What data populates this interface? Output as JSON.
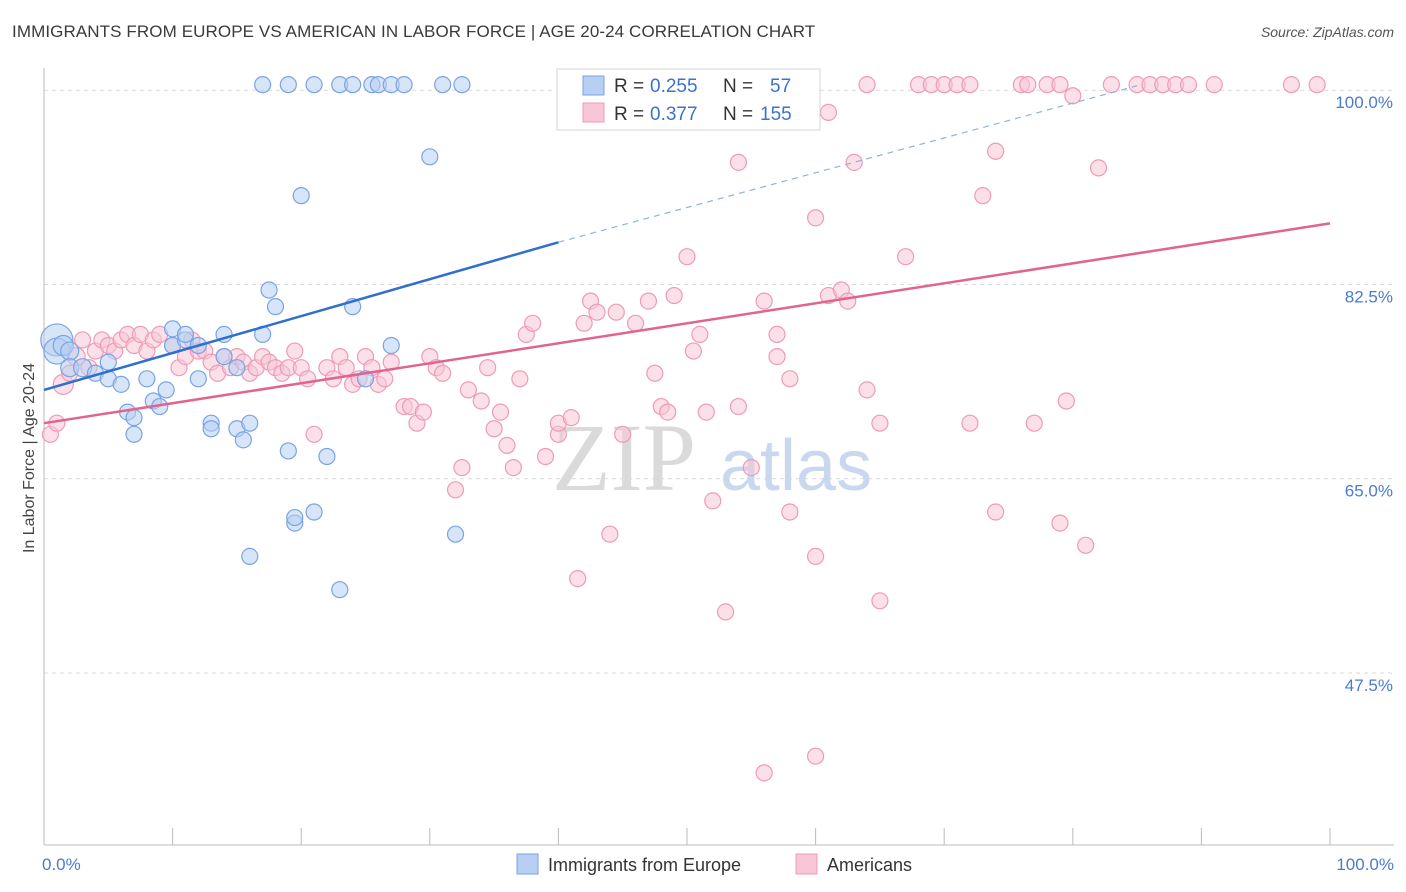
{
  "header": {
    "title": "IMMIGRANTS FROM EUROPE VS AMERICAN IN LABOR FORCE | AGE 20-24 CORRELATION CHART",
    "source": "Source: ZipAtlas.com"
  },
  "watermark": {
    "zip": "ZIP",
    "atlas": "atlas"
  },
  "legend": {
    "r_label": "R =",
    "n_label": "N =",
    "entries": [
      {
        "r": "0.255",
        "n": "57"
      },
      {
        "r": "0.377",
        "n": "155"
      }
    ]
  },
  "chart_data": {
    "type": "scatter",
    "ylabel": "In Labor Force | Age 20-24",
    "xlim": [
      0,
      100
    ],
    "ylim": [
      32,
      102
    ],
    "x_tick_labels": [
      "0.0%",
      "100.0%"
    ],
    "y_ticks": [
      {
        "value": 100,
        "label": "100.0%"
      },
      {
        "value": 82.5,
        "label": "82.5%"
      },
      {
        "value": 65,
        "label": "65.0%"
      },
      {
        "value": 47.5,
        "label": "47.5%"
      }
    ],
    "grid": "horizontal dashed",
    "legend_placement": "top-center",
    "series": [
      {
        "name": "Immigrants from Europe",
        "color": "#7aa3e5",
        "fill": "#b7cff2",
        "line_color": "#2f6fcd",
        "trend": {
          "x0": 0,
          "y0": 73,
          "x1": 40,
          "y1": 86.3,
          "dash_to_x": 85,
          "dash_to_y": 100.4
        },
        "points": [
          [
            1,
            77.5,
            16
          ],
          [
            1,
            76.5,
            13
          ],
          [
            1.5,
            77,
            10
          ],
          [
            2,
            76.5,
            9
          ],
          [
            2,
            75,
            9
          ],
          [
            3,
            75,
            9
          ],
          [
            4,
            74.5,
            8
          ],
          [
            5,
            74,
            8
          ],
          [
            5,
            75.5,
            8
          ],
          [
            6,
            73.5,
            8
          ],
          [
            6.5,
            71,
            8
          ],
          [
            7,
            69,
            8
          ],
          [
            7,
            70.5,
            8
          ],
          [
            8,
            74,
            8
          ],
          [
            8.5,
            72,
            8
          ],
          [
            9,
            71.5,
            8
          ],
          [
            9.5,
            73,
            8
          ],
          [
            10,
            78.5,
            8
          ],
          [
            10,
            77,
            8
          ],
          [
            11,
            77.5,
            8
          ],
          [
            11,
            78,
            8
          ],
          [
            12,
            77,
            8
          ],
          [
            12,
            74,
            8
          ],
          [
            13,
            70,
            8
          ],
          [
            13,
            69.5,
            8
          ],
          [
            14,
            76,
            8
          ],
          [
            14,
            78,
            8
          ],
          [
            15,
            75,
            8
          ],
          [
            15,
            69.5,
            8
          ],
          [
            15.5,
            68.5,
            8
          ],
          [
            16,
            70,
            8
          ],
          [
            16,
            58,
            8
          ],
          [
            17,
            78,
            8
          ],
          [
            17.5,
            82,
            8
          ],
          [
            18,
            80.5,
            8
          ],
          [
            19,
            67.5,
            8
          ],
          [
            19.5,
            61,
            8
          ],
          [
            19.5,
            61.5,
            8
          ],
          [
            21,
            62,
            8
          ],
          [
            22,
            67,
            8
          ],
          [
            23,
            55,
            8
          ],
          [
            24,
            80.5,
            8
          ],
          [
            25,
            74,
            8
          ],
          [
            27,
            77,
            8
          ],
          [
            30,
            94,
            8
          ],
          [
            32,
            60,
            8
          ],
          [
            17,
            100.5,
            8
          ],
          [
            19,
            100.5,
            8
          ],
          [
            21,
            100.5,
            8
          ],
          [
            23,
            100.5,
            8
          ],
          [
            24,
            100.5,
            8
          ],
          [
            25.5,
            100.5,
            8
          ],
          [
            26,
            100.5,
            8
          ],
          [
            27,
            100.5,
            8
          ],
          [
            28,
            100.5,
            8
          ],
          [
            31,
            100.5,
            8
          ],
          [
            32.5,
            100.5,
            8
          ],
          [
            20,
            90.5,
            8
          ]
        ]
      },
      {
        "name": "Americans",
        "color": "#ef9ab8",
        "fill": "#f8c6d6",
        "line_color": "#e0648f",
        "trend": {
          "x0": 0,
          "y0": 70,
          "x1": 100,
          "y1": 88
        },
        "points": [
          [
            0.5,
            69,
            8
          ],
          [
            1,
            70,
            8
          ],
          [
            1.5,
            73.5,
            10
          ],
          [
            2,
            74.5,
            8
          ],
          [
            2.5,
            76,
            9
          ],
          [
            3,
            77.5,
            8
          ],
          [
            3.5,
            75,
            8
          ],
          [
            4,
            76.5,
            8
          ],
          [
            4.5,
            77.5,
            8
          ],
          [
            5,
            77,
            8
          ],
          [
            5.5,
            76.5,
            8
          ],
          [
            6,
            77.5,
            8
          ],
          [
            6.5,
            78,
            8
          ],
          [
            7,
            77,
            8
          ],
          [
            7.5,
            78,
            8
          ],
          [
            8,
            76.5,
            8
          ],
          [
            8.5,
            77.5,
            8
          ],
          [
            9,
            78,
            8
          ],
          [
            10,
            77,
            8
          ],
          [
            10.5,
            75,
            8
          ],
          [
            11,
            76,
            8
          ],
          [
            11.5,
            77.5,
            8
          ],
          [
            12,
            76.5,
            8
          ],
          [
            12.5,
            76.5,
            8
          ],
          [
            13,
            75.5,
            8
          ],
          [
            13.5,
            74.5,
            8
          ],
          [
            14,
            76,
            8
          ],
          [
            14.5,
            75,
            8
          ],
          [
            15,
            76,
            8
          ],
          [
            15.5,
            75.5,
            8
          ],
          [
            16,
            74.5,
            8
          ],
          [
            16.5,
            75,
            8
          ],
          [
            17,
            76,
            8
          ],
          [
            17.5,
            75.5,
            8
          ],
          [
            18,
            75,
            8
          ],
          [
            18.5,
            74.5,
            8
          ],
          [
            19,
            75,
            8
          ],
          [
            19.5,
            76.5,
            8
          ],
          [
            20,
            75,
            8
          ],
          [
            20.5,
            74,
            8
          ],
          [
            21,
            69,
            8
          ],
          [
            22,
            75,
            8
          ],
          [
            22.5,
            74,
            8
          ],
          [
            23,
            76,
            8
          ],
          [
            23.5,
            75,
            8
          ],
          [
            24,
            73.5,
            8
          ],
          [
            24.5,
            74,
            8
          ],
          [
            25,
            76,
            8
          ],
          [
            25.5,
            75,
            8
          ],
          [
            26,
            73.5,
            8
          ],
          [
            26.5,
            74,
            8
          ],
          [
            27,
            75.5,
            8
          ],
          [
            28,
            71.5,
            8
          ],
          [
            28.5,
            71.5,
            8
          ],
          [
            29,
            70,
            8
          ],
          [
            29.5,
            71,
            8
          ],
          [
            30,
            76,
            8
          ],
          [
            30.5,
            75,
            8
          ],
          [
            31,
            74.5,
            8
          ],
          [
            32,
            64,
            8
          ],
          [
            32.5,
            66,
            8
          ],
          [
            33,
            73,
            8
          ],
          [
            34,
            72,
            8
          ],
          [
            34.5,
            75,
            8
          ],
          [
            35,
            69.5,
            8
          ],
          [
            35.5,
            71,
            8
          ],
          [
            36,
            68,
            8
          ],
          [
            36.5,
            66,
            8
          ],
          [
            37,
            74,
            8
          ],
          [
            37.5,
            78,
            8
          ],
          [
            38,
            79,
            8
          ],
          [
            39,
            67,
            8
          ],
          [
            40,
            69,
            8
          ],
          [
            40,
            70,
            8
          ],
          [
            41,
            70.5,
            8
          ],
          [
            41.5,
            56,
            8
          ],
          [
            42,
            79,
            8
          ],
          [
            42.5,
            81,
            8
          ],
          [
            43,
            80,
            8
          ],
          [
            44,
            60,
            8
          ],
          [
            44.5,
            80,
            8
          ],
          [
            45,
            69,
            8
          ],
          [
            46,
            79,
            8
          ],
          [
            47,
            81,
            8
          ],
          [
            47.5,
            74.5,
            8
          ],
          [
            48,
            71.5,
            8
          ],
          [
            48.5,
            71,
            8
          ],
          [
            49,
            81.5,
            8
          ],
          [
            50,
            85,
            8
          ],
          [
            50.5,
            76.5,
            8
          ],
          [
            51,
            78,
            8
          ],
          [
            51.5,
            71,
            8
          ],
          [
            52,
            63,
            8
          ],
          [
            53,
            53,
            8
          ],
          [
            54,
            93.5,
            8
          ],
          [
            54,
            71.5,
            8
          ],
          [
            55,
            66,
            8
          ],
          [
            56,
            81,
            8
          ],
          [
            57,
            76,
            8
          ],
          [
            57,
            78,
            8
          ],
          [
            58,
            74,
            8
          ],
          [
            58,
            62,
            8
          ],
          [
            60,
            88.5,
            8
          ],
          [
            60,
            58,
            8
          ],
          [
            61,
            81.5,
            8
          ],
          [
            62,
            82,
            8
          ],
          [
            62.5,
            81,
            8
          ],
          [
            63,
            93.5,
            8
          ],
          [
            64,
            73,
            8
          ],
          [
            65,
            54,
            8
          ],
          [
            65,
            70,
            8
          ],
          [
            67,
            85,
            8
          ],
          [
            72,
            70,
            8
          ],
          [
            73,
            90.5,
            8
          ],
          [
            74,
            94.5,
            8
          ],
          [
            74,
            62,
            8
          ],
          [
            77,
            70,
            8
          ],
          [
            79,
            61,
            8
          ],
          [
            79.5,
            72,
            8
          ],
          [
            80,
            99.5,
            8
          ],
          [
            81,
            59,
            8
          ],
          [
            82,
            93,
            8
          ],
          [
            55,
            100.5,
            8
          ],
          [
            57,
            100.5,
            8
          ],
          [
            64,
            100.5,
            8
          ],
          [
            68,
            100.5,
            8
          ],
          [
            69,
            100.5,
            8
          ],
          [
            70,
            100.5,
            8
          ],
          [
            71,
            100.5,
            8
          ],
          [
            72,
            100.5,
            8
          ],
          [
            76,
            100.5,
            8
          ],
          [
            76.5,
            100.5,
            8
          ],
          [
            78,
            100.5,
            8
          ],
          [
            79,
            100.5,
            8
          ],
          [
            83,
            100.5,
            8
          ],
          [
            85,
            100.5,
            8
          ],
          [
            86,
            100.5,
            8
          ],
          [
            87,
            100.5,
            8
          ],
          [
            88,
            100.5,
            8
          ],
          [
            89,
            100.5,
            8
          ],
          [
            91,
            100.5,
            8
          ],
          [
            97,
            100.5,
            8
          ],
          [
            99,
            100.5,
            8
          ],
          [
            56,
            38.5,
            8
          ],
          [
            60,
            40,
            8
          ],
          [
            61,
            98,
            8
          ]
        ]
      }
    ]
  }
}
